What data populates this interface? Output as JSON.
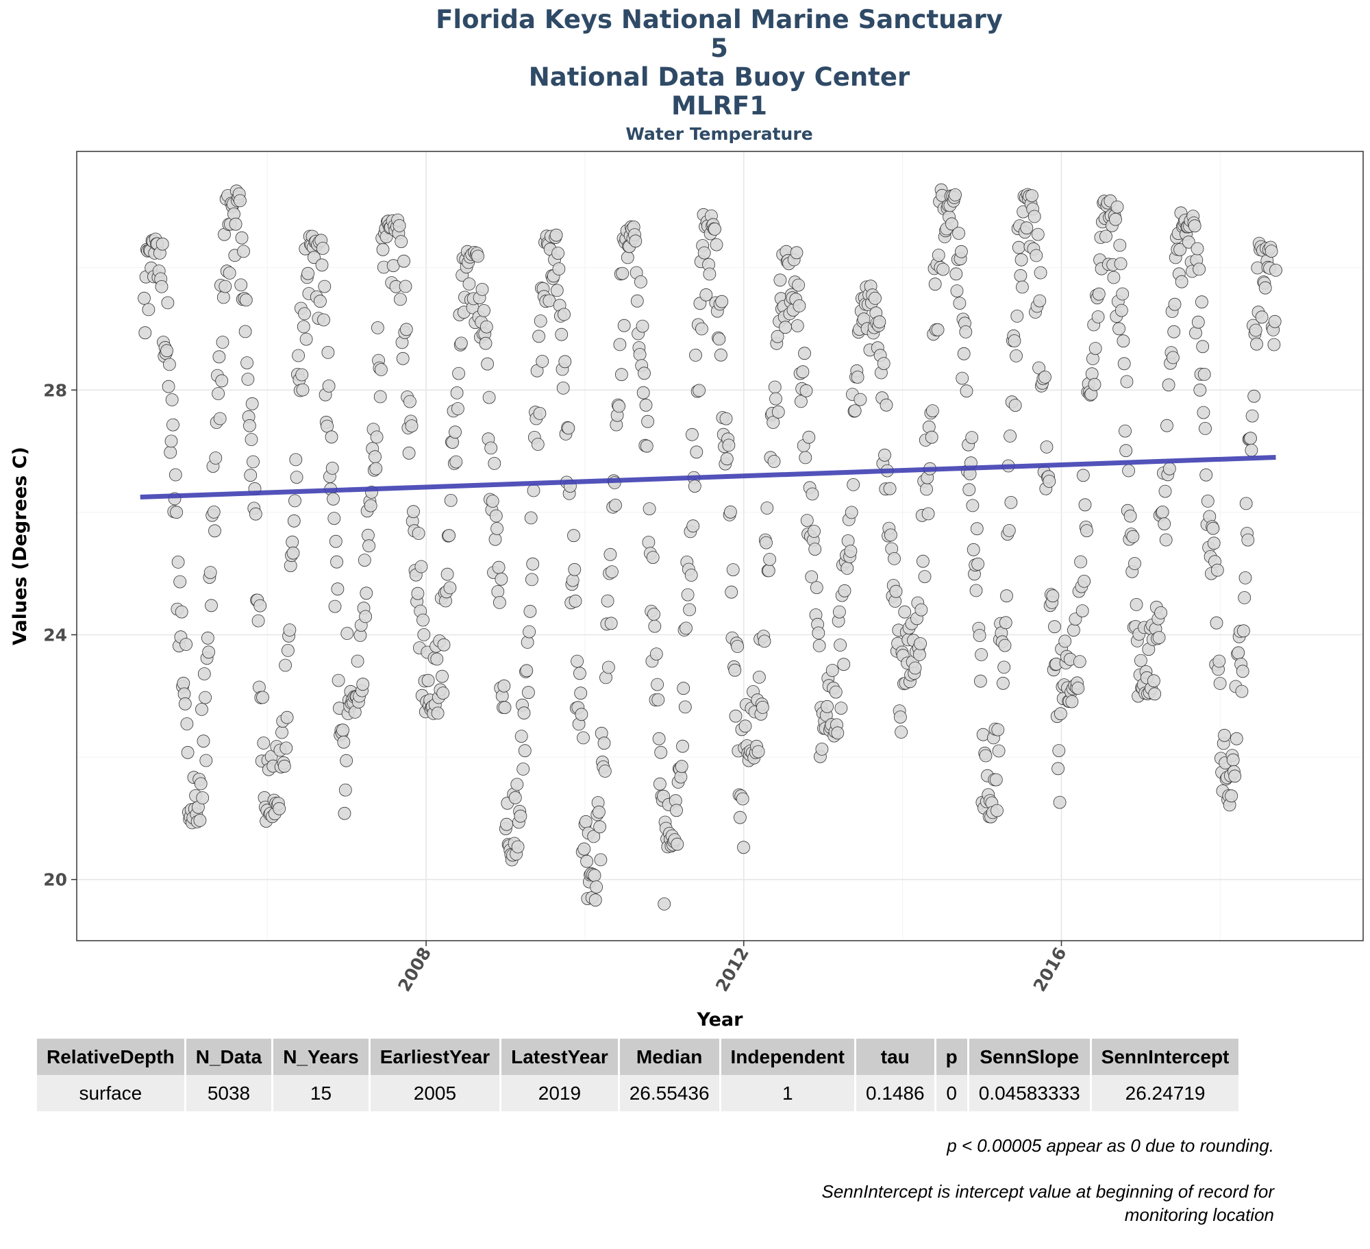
{
  "header": {
    "title_lines": [
      "Florida Keys National Marine Sanctuary",
      "5",
      "National Data Buoy Center",
      "MLRF1"
    ],
    "subtitle": "Water Temperature"
  },
  "chart_data": {
    "type": "scatter",
    "title": "Florida Keys National Marine Sanctuary 5 National Data Buoy Center MLRF1",
    "subtitle": "Water Temperature",
    "xlabel": "Year",
    "ylabel": "Values (Degrees C)",
    "xlim": [
      2003.6,
      2019.8
    ],
    "ylim": [
      19.0,
      31.9
    ],
    "x_ticks": [
      2008,
      2012,
      2016
    ],
    "y_ticks": [
      20,
      24,
      28
    ],
    "grid": true,
    "point_style": {
      "fill": "#d9d9d9",
      "stroke": "#333333"
    },
    "trend_color": "#3f3fb3",
    "trendline": {
      "x": [
        2004.4,
        2018.7
      ],
      "y": [
        26.25,
        26.9
      ]
    },
    "seasonal_series": {
      "years": [
        2004,
        2005,
        2006,
        2007,
        2008,
        2009,
        2010,
        2011,
        2012,
        2013,
        2014,
        2015,
        2016,
        2017,
        2018,
        2019
      ],
      "peak": [
        null,
        31.3,
        30.6,
        30.8,
        30.3,
        30.6,
        30.7,
        30.9,
        30.3,
        29.7,
        31.3,
        31.2,
        31.1,
        30.9,
        30.4,
        null
      ],
      "trough": [
        22.0,
        20.9,
        21.0,
        22.7,
        22.7,
        20.3,
        19.6,
        20.5,
        21.9,
        22.3,
        23.2,
        21.0,
        22.9,
        23.0,
        21.2,
        22.6
      ]
    }
  },
  "table": {
    "headers": [
      "RelativeDepth",
      "N_Data",
      "N_Years",
      "EarliestYear",
      "LatestYear",
      "Median",
      "Independent",
      "tau",
      "p",
      "SennSlope",
      "SennIntercept"
    ],
    "rows": [
      [
        "surface",
        "5038",
        "15",
        "2005",
        "2019",
        "26.55436",
        "1",
        "0.1486",
        "0",
        "0.04583333",
        "26.24719"
      ]
    ]
  },
  "notes": {
    "p_note": "p < 0.00005 appear as 0 due to rounding.",
    "intercept_note": "SennIntercept is intercept value at beginning of record for monitoring location"
  }
}
